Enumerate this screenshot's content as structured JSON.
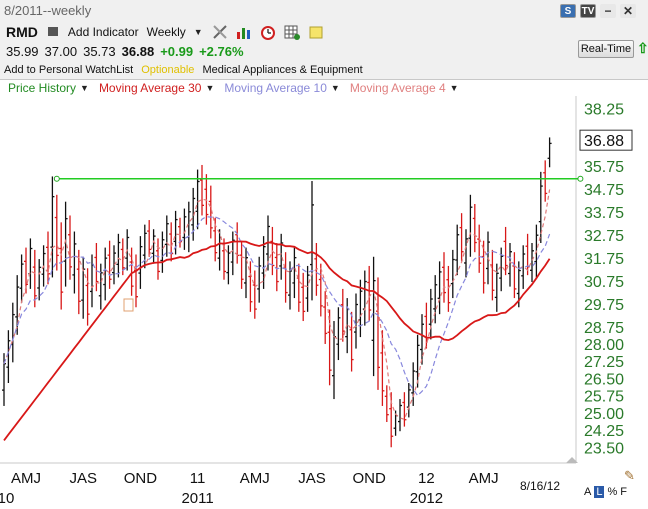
{
  "header": {
    "title": "8/2011--weekly",
    "symbol": "RMD",
    "add_indicator": "Add Indicator",
    "interval": "Weekly",
    "open": "35.99",
    "high": "37.00",
    "low": "35.73",
    "last": "36.88",
    "change": "+0.99",
    "change_pct": "+2.76%",
    "watchlist": "Add to Personal WatchList",
    "optionable": "Optionable",
    "industry": "Medical Appliances & Equipment",
    "realtime": "Real-Time",
    "top_icons": [
      "S",
      "TV",
      "−",
      "✕"
    ]
  },
  "legend": [
    {
      "label": "Price History",
      "color": "#228b22"
    },
    {
      "label": "Moving Average 30",
      "color": "#d02020"
    },
    {
      "label": "Moving Average 10",
      "color": "#8a8ad8"
    },
    {
      "label": "Moving Average 4",
      "color": "#e08080"
    }
  ],
  "footer": {
    "date": "8/16/12",
    "corner": [
      "A",
      "L",
      "%",
      "F"
    ]
  },
  "chart_data": {
    "type": "bar",
    "title": "",
    "ylim": [
      23.25,
      38.5
    ],
    "y_ticks": [
      "38.25",
      "35.75",
      "34.75",
      "33.75",
      "32.75",
      "31.75",
      "30.75",
      "29.75",
      "28.75",
      "28.00",
      "27.25",
      "26.50",
      "25.75",
      "25.00",
      "24.25",
      "23.50"
    ],
    "y_tick_values": [
      38.25,
      35.75,
      34.75,
      33.75,
      32.75,
      31.75,
      30.75,
      29.75,
      28.75,
      28.0,
      27.25,
      26.5,
      25.75,
      25.0,
      24.25,
      23.5
    ],
    "x_ticks": [
      {
        "label": "AMJ",
        "week": 5
      },
      {
        "label": "JAS",
        "week": 18
      },
      {
        "label": "OND",
        "week": 31
      },
      {
        "label": "11",
        "week": 44
      },
      {
        "label": "AMJ",
        "week": 57
      },
      {
        "label": "JAS",
        "week": 70
      },
      {
        "label": "OND",
        "week": 83
      },
      {
        "label": "12",
        "week": 96
      },
      {
        "label": "AMJ",
        "week": 109
      }
    ],
    "x_year_labels": [
      {
        "label": "10",
        "week": -1
      },
      {
        "label": "2011",
        "week": 44
      },
      {
        "label": "2012",
        "week": 96
      }
    ],
    "last_price_label": "36.88",
    "resistance_line": {
      "value": 35.2,
      "start_week": 12,
      "end_week": 131
    },
    "weeks": [
      {
        "h": 27.6,
        "l": 25.3,
        "u": 1
      },
      {
        "h": 28.6,
        "l": 26.3,
        "u": 1
      },
      {
        "h": 29.8,
        "l": 27.2,
        "u": 1
      },
      {
        "h": 31.0,
        "l": 28.4,
        "u": 1
      },
      {
        "h": 31.9,
        "l": 29.8,
        "u": 1
      },
      {
        "h": 32.2,
        "l": 30.2,
        "u": 0
      },
      {
        "h": 32.6,
        "l": 30.4,
        "u": 1
      },
      {
        "h": 32.1,
        "l": 29.6,
        "u": 0
      },
      {
        "h": 31.7,
        "l": 29.9,
        "u": 1
      },
      {
        "h": 32.3,
        "l": 30.5,
        "u": 1
      },
      {
        "h": 32.9,
        "l": 30.6,
        "u": 0
      },
      {
        "h": 35.3,
        "l": 30.9,
        "u": 1
      },
      {
        "h": 34.5,
        "l": 31.2,
        "u": 0
      },
      {
        "h": 33.3,
        "l": 29.5,
        "u": 0
      },
      {
        "h": 34.2,
        "l": 30.5,
        "u": 1
      },
      {
        "h": 33.6,
        "l": 30.8,
        "u": 0
      },
      {
        "h": 32.9,
        "l": 30.2,
        "u": 1
      },
      {
        "h": 32.1,
        "l": 29.3,
        "u": 0
      },
      {
        "h": 31.8,
        "l": 29.1,
        "u": 1
      },
      {
        "h": 31.3,
        "l": 28.8,
        "u": 0
      },
      {
        "h": 31.9,
        "l": 29.6,
        "u": 1
      },
      {
        "h": 32.4,
        "l": 30.3,
        "u": 0
      },
      {
        "h": 31.5,
        "l": 29.5,
        "u": 1
      },
      {
        "h": 32.2,
        "l": 29.9,
        "u": 1
      },
      {
        "h": 32.5,
        "l": 30.4,
        "u": 0
      },
      {
        "h": 32.3,
        "l": 30.6,
        "u": 1
      },
      {
        "h": 32.8,
        "l": 30.9,
        "u": 1
      },
      {
        "h": 32.6,
        "l": 31.0,
        "u": 0
      },
      {
        "h": 33.0,
        "l": 31.2,
        "u": 1
      },
      {
        "h": 32.2,
        "l": 30.1,
        "u": 0
      },
      {
        "h": 31.9,
        "l": 29.6,
        "u": 0
      },
      {
        "h": 32.7,
        "l": 30.4,
        "u": 1
      },
      {
        "h": 33.2,
        "l": 31.3,
        "u": 1
      },
      {
        "h": 33.4,
        "l": 31.8,
        "u": 0
      },
      {
        "h": 33.0,
        "l": 31.5,
        "u": 1
      },
      {
        "h": 32.6,
        "l": 30.8,
        "u": 0
      },
      {
        "h": 32.9,
        "l": 31.1,
        "u": 1
      },
      {
        "h": 33.6,
        "l": 31.8,
        "u": 1
      },
      {
        "h": 33.3,
        "l": 31.6,
        "u": 0
      },
      {
        "h": 33.8,
        "l": 31.9,
        "u": 1
      },
      {
        "h": 33.5,
        "l": 32.2,
        "u": 0
      },
      {
        "h": 33.9,
        "l": 32.1,
        "u": 1
      },
      {
        "h": 34.2,
        "l": 32.0,
        "u": 1
      },
      {
        "h": 34.8,
        "l": 32.5,
        "u": 1
      },
      {
        "h": 35.6,
        "l": 33.0,
        "u": 1
      },
      {
        "h": 35.8,
        "l": 33.6,
        "u": 0
      },
      {
        "h": 35.4,
        "l": 33.2,
        "u": 0
      },
      {
        "h": 34.9,
        "l": 32.6,
        "u": 0
      },
      {
        "h": 33.5,
        "l": 31.6,
        "u": 0
      },
      {
        "h": 33.0,
        "l": 31.2,
        "u": 1
      },
      {
        "h": 32.6,
        "l": 30.8,
        "u": 0
      },
      {
        "h": 32.3,
        "l": 30.6,
        "u": 1
      },
      {
        "h": 32.9,
        "l": 31.0,
        "u": 1
      },
      {
        "h": 33.3,
        "l": 31.5,
        "u": 0
      },
      {
        "h": 32.5,
        "l": 30.4,
        "u": 0
      },
      {
        "h": 32.2,
        "l": 30.0,
        "u": 1
      },
      {
        "h": 31.6,
        "l": 29.4,
        "u": 0
      },
      {
        "h": 31.2,
        "l": 29.1,
        "u": 0
      },
      {
        "h": 31.8,
        "l": 29.8,
        "u": 1
      },
      {
        "h": 32.7,
        "l": 30.4,
        "u": 1
      },
      {
        "h": 33.6,
        "l": 31.2,
        "u": 1
      },
      {
        "h": 33.1,
        "l": 31.0,
        "u": 0
      },
      {
        "h": 32.4,
        "l": 30.3,
        "u": 0
      },
      {
        "h": 32.8,
        "l": 30.8,
        "u": 1
      },
      {
        "h": 32.0,
        "l": 29.8,
        "u": 0
      },
      {
        "h": 31.6,
        "l": 29.5,
        "u": 1
      },
      {
        "h": 32.2,
        "l": 30.0,
        "u": 1
      },
      {
        "h": 31.5,
        "l": 29.4,
        "u": 0
      },
      {
        "h": 31.1,
        "l": 29.0,
        "u": 0
      },
      {
        "h": 31.4,
        "l": 29.4,
        "u": 1
      },
      {
        "h": 35.1,
        "l": 29.9,
        "u": 1
      },
      {
        "h": 32.4,
        "l": 30.1,
        "u": 0
      },
      {
        "h": 31.5,
        "l": 29.2,
        "u": 0
      },
      {
        "h": 30.3,
        "l": 28.0,
        "u": 0
      },
      {
        "h": 29.5,
        "l": 26.2,
        "u": 0
      },
      {
        "h": 29.0,
        "l": 25.6,
        "u": 1
      },
      {
        "h": 29.6,
        "l": 27.3,
        "u": 1
      },
      {
        "h": 30.4,
        "l": 28.1,
        "u": 0
      },
      {
        "h": 30.0,
        "l": 27.6,
        "u": 1
      },
      {
        "h": 29.4,
        "l": 26.8,
        "u": 0
      },
      {
        "h": 30.2,
        "l": 27.8,
        "u": 1
      },
      {
        "h": 30.8,
        "l": 28.3,
        "u": 1
      },
      {
        "h": 31.2,
        "l": 28.8,
        "u": 1
      },
      {
        "h": 31.4,
        "l": 29.0,
        "u": 0
      },
      {
        "h": 31.8,
        "l": 26.6,
        "u": 1
      },
      {
        "h": 30.9,
        "l": 26.0,
        "u": 0
      },
      {
        "h": 28.6,
        "l": 25.3,
        "u": 0
      },
      {
        "h": 26.2,
        "l": 24.6,
        "u": 0
      },
      {
        "h": 25.9,
        "l": 23.5,
        "u": 0
      },
      {
        "h": 25.1,
        "l": 24.0,
        "u": 1
      },
      {
        "h": 25.6,
        "l": 24.2,
        "u": 1
      },
      {
        "h": 25.9,
        "l": 24.4,
        "u": 0
      },
      {
        "h": 26.3,
        "l": 24.8,
        "u": 1
      },
      {
        "h": 27.2,
        "l": 25.3,
        "u": 1
      },
      {
        "h": 28.4,
        "l": 26.1,
        "u": 1
      },
      {
        "h": 29.3,
        "l": 27.1,
        "u": 1
      },
      {
        "h": 29.8,
        "l": 27.8,
        "u": 0
      },
      {
        "h": 30.4,
        "l": 28.2,
        "u": 1
      },
      {
        "h": 31.0,
        "l": 28.9,
        "u": 1
      },
      {
        "h": 31.6,
        "l": 29.3,
        "u": 1
      },
      {
        "h": 32.0,
        "l": 29.8,
        "u": 0
      },
      {
        "h": 31.4,
        "l": 29.4,
        "u": 0
      },
      {
        "h": 32.1,
        "l": 30.0,
        "u": 1
      },
      {
        "h": 33.2,
        "l": 31.0,
        "u": 1
      },
      {
        "h": 33.7,
        "l": 31.6,
        "u": 0
      },
      {
        "h": 33.0,
        "l": 30.9,
        "u": 1
      },
      {
        "h": 34.5,
        "l": 31.8,
        "u": 1
      },
      {
        "h": 34.1,
        "l": 32.0,
        "u": 0
      },
      {
        "h": 33.2,
        "l": 31.1,
        "u": 0
      },
      {
        "h": 32.5,
        "l": 30.2,
        "u": 0
      },
      {
        "h": 32.9,
        "l": 30.6,
        "u": 1
      },
      {
        "h": 32.1,
        "l": 29.9,
        "u": 0
      },
      {
        "h": 31.5,
        "l": 29.4,
        "u": 1
      },
      {
        "h": 32.2,
        "l": 30.3,
        "u": 1
      },
      {
        "h": 33.1,
        "l": 31.0,
        "u": 0
      },
      {
        "h": 32.4,
        "l": 30.5,
        "u": 1
      },
      {
        "h": 32.0,
        "l": 30.0,
        "u": 0
      },
      {
        "h": 31.6,
        "l": 29.6,
        "u": 1
      },
      {
        "h": 32.3,
        "l": 30.4,
        "u": 1
      },
      {
        "h": 32.8,
        "l": 31.0,
        "u": 0
      },
      {
        "h": 32.4,
        "l": 30.7,
        "u": 1
      },
      {
        "h": 33.2,
        "l": 30.9,
        "u": 1
      },
      {
        "h": 35.5,
        "l": 32.4,
        "u": 1
      },
      {
        "h": 36.0,
        "l": 34.2,
        "u": 0
      },
      {
        "h": 37.0,
        "l": 35.7,
        "u": 1
      }
    ]
  }
}
